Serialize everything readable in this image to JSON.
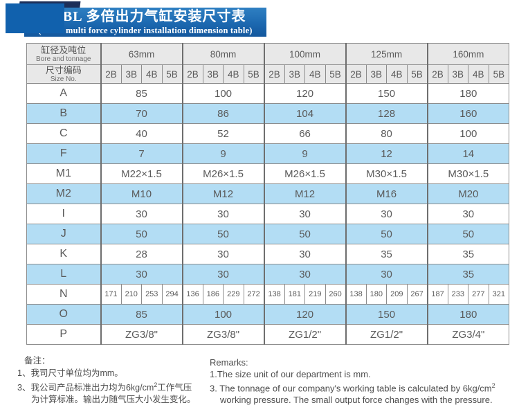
{
  "banner": {
    "title_cn": "JRBL 多倍出力气缸安装尺寸表",
    "title_en": "(JRBL multi force cylinder installation dimension table)"
  },
  "table": {
    "corner_label_cn": "缸径及吨位",
    "corner_label_en": "Bore and tonnage",
    "size_label_cn": "尺寸编码",
    "size_label_en": "Size No.",
    "bore_groups": [
      "63mm",
      "80mm",
      "100mm",
      "125mm",
      "160mm"
    ],
    "sub_columns": [
      "2B",
      "3B",
      "4B",
      "5B"
    ],
    "rows": [
      {
        "label": "A",
        "type": "merged",
        "shade": false,
        "values": [
          "85",
          "100",
          "120",
          "150",
          "180"
        ]
      },
      {
        "label": "B",
        "type": "merged",
        "shade": true,
        "values": [
          "70",
          "86",
          "104",
          "128",
          "160"
        ]
      },
      {
        "label": "C",
        "type": "merged",
        "shade": false,
        "values": [
          "40",
          "52",
          "66",
          "80",
          "100"
        ]
      },
      {
        "label": "F",
        "type": "merged",
        "shade": true,
        "values": [
          "7",
          "9",
          "9",
          "12",
          "14"
        ]
      },
      {
        "label": "M1",
        "type": "merged",
        "shade": false,
        "values": [
          "M22×1.5",
          "M26×1.5",
          "M26×1.5",
          "M30×1.5",
          "M30×1.5"
        ]
      },
      {
        "label": "M2",
        "type": "merged",
        "shade": true,
        "values": [
          "M10",
          "M12",
          "M12",
          "M16",
          "M20"
        ]
      },
      {
        "label": "I",
        "type": "merged",
        "shade": false,
        "values": [
          "30",
          "30",
          "30",
          "30",
          "30"
        ]
      },
      {
        "label": "J",
        "type": "merged",
        "shade": true,
        "values": [
          "50",
          "50",
          "50",
          "50",
          "50"
        ]
      },
      {
        "label": "K",
        "type": "merged",
        "shade": false,
        "values": [
          "28",
          "30",
          "30",
          "35",
          "35"
        ]
      },
      {
        "label": "L",
        "type": "merged",
        "shade": true,
        "values": [
          "30",
          "30",
          "30",
          "30",
          "35"
        ]
      },
      {
        "label": "N",
        "type": "per-column",
        "shade": false,
        "values": [
          [
            "171",
            "210",
            "253",
            "294"
          ],
          [
            "136",
            "186",
            "229",
            "272"
          ],
          [
            "138",
            "181",
            "219",
            "260"
          ],
          [
            "138",
            "180",
            "209",
            "267"
          ],
          [
            "187",
            "233",
            "277",
            "321"
          ]
        ]
      },
      {
        "label": "O",
        "type": "merged",
        "shade": true,
        "values": [
          "85",
          "100",
          "120",
          "150",
          "180"
        ]
      },
      {
        "label": "P",
        "type": "merged",
        "shade": false,
        "values": [
          "ZG3/8\"",
          "ZG3/8\"",
          "ZG1/2\"",
          "ZG1/2\"",
          "ZG3/4\""
        ]
      }
    ]
  },
  "notes": {
    "cn": {
      "heading": "备注：",
      "line1": "1、我司尺寸单位均为mm。",
      "line2_pre": "3、我公司产品标准出力均为6kg/cm",
      "line2_sup": "2",
      "line2_post": "工作气压",
      "line3": "为计算标准。输出力随气压大小发生变化。"
    },
    "en": {
      "heading": "Remarks:",
      "line1": "1.The size unit of our department is mm.",
      "line2_pre": "3. The tonnage of our company's working table is calculated by 6kg/cm",
      "line2_sup": "2",
      "line3": "working pressure. The small output force changes with the pressure."
    }
  },
  "colors": {
    "banner_blue": "#1c68b0",
    "square_blue": "#1161ad",
    "square_navy": "#1c2f59",
    "row_blue": "#b3ddf4",
    "header_gray": "#e8e8e8"
  }
}
